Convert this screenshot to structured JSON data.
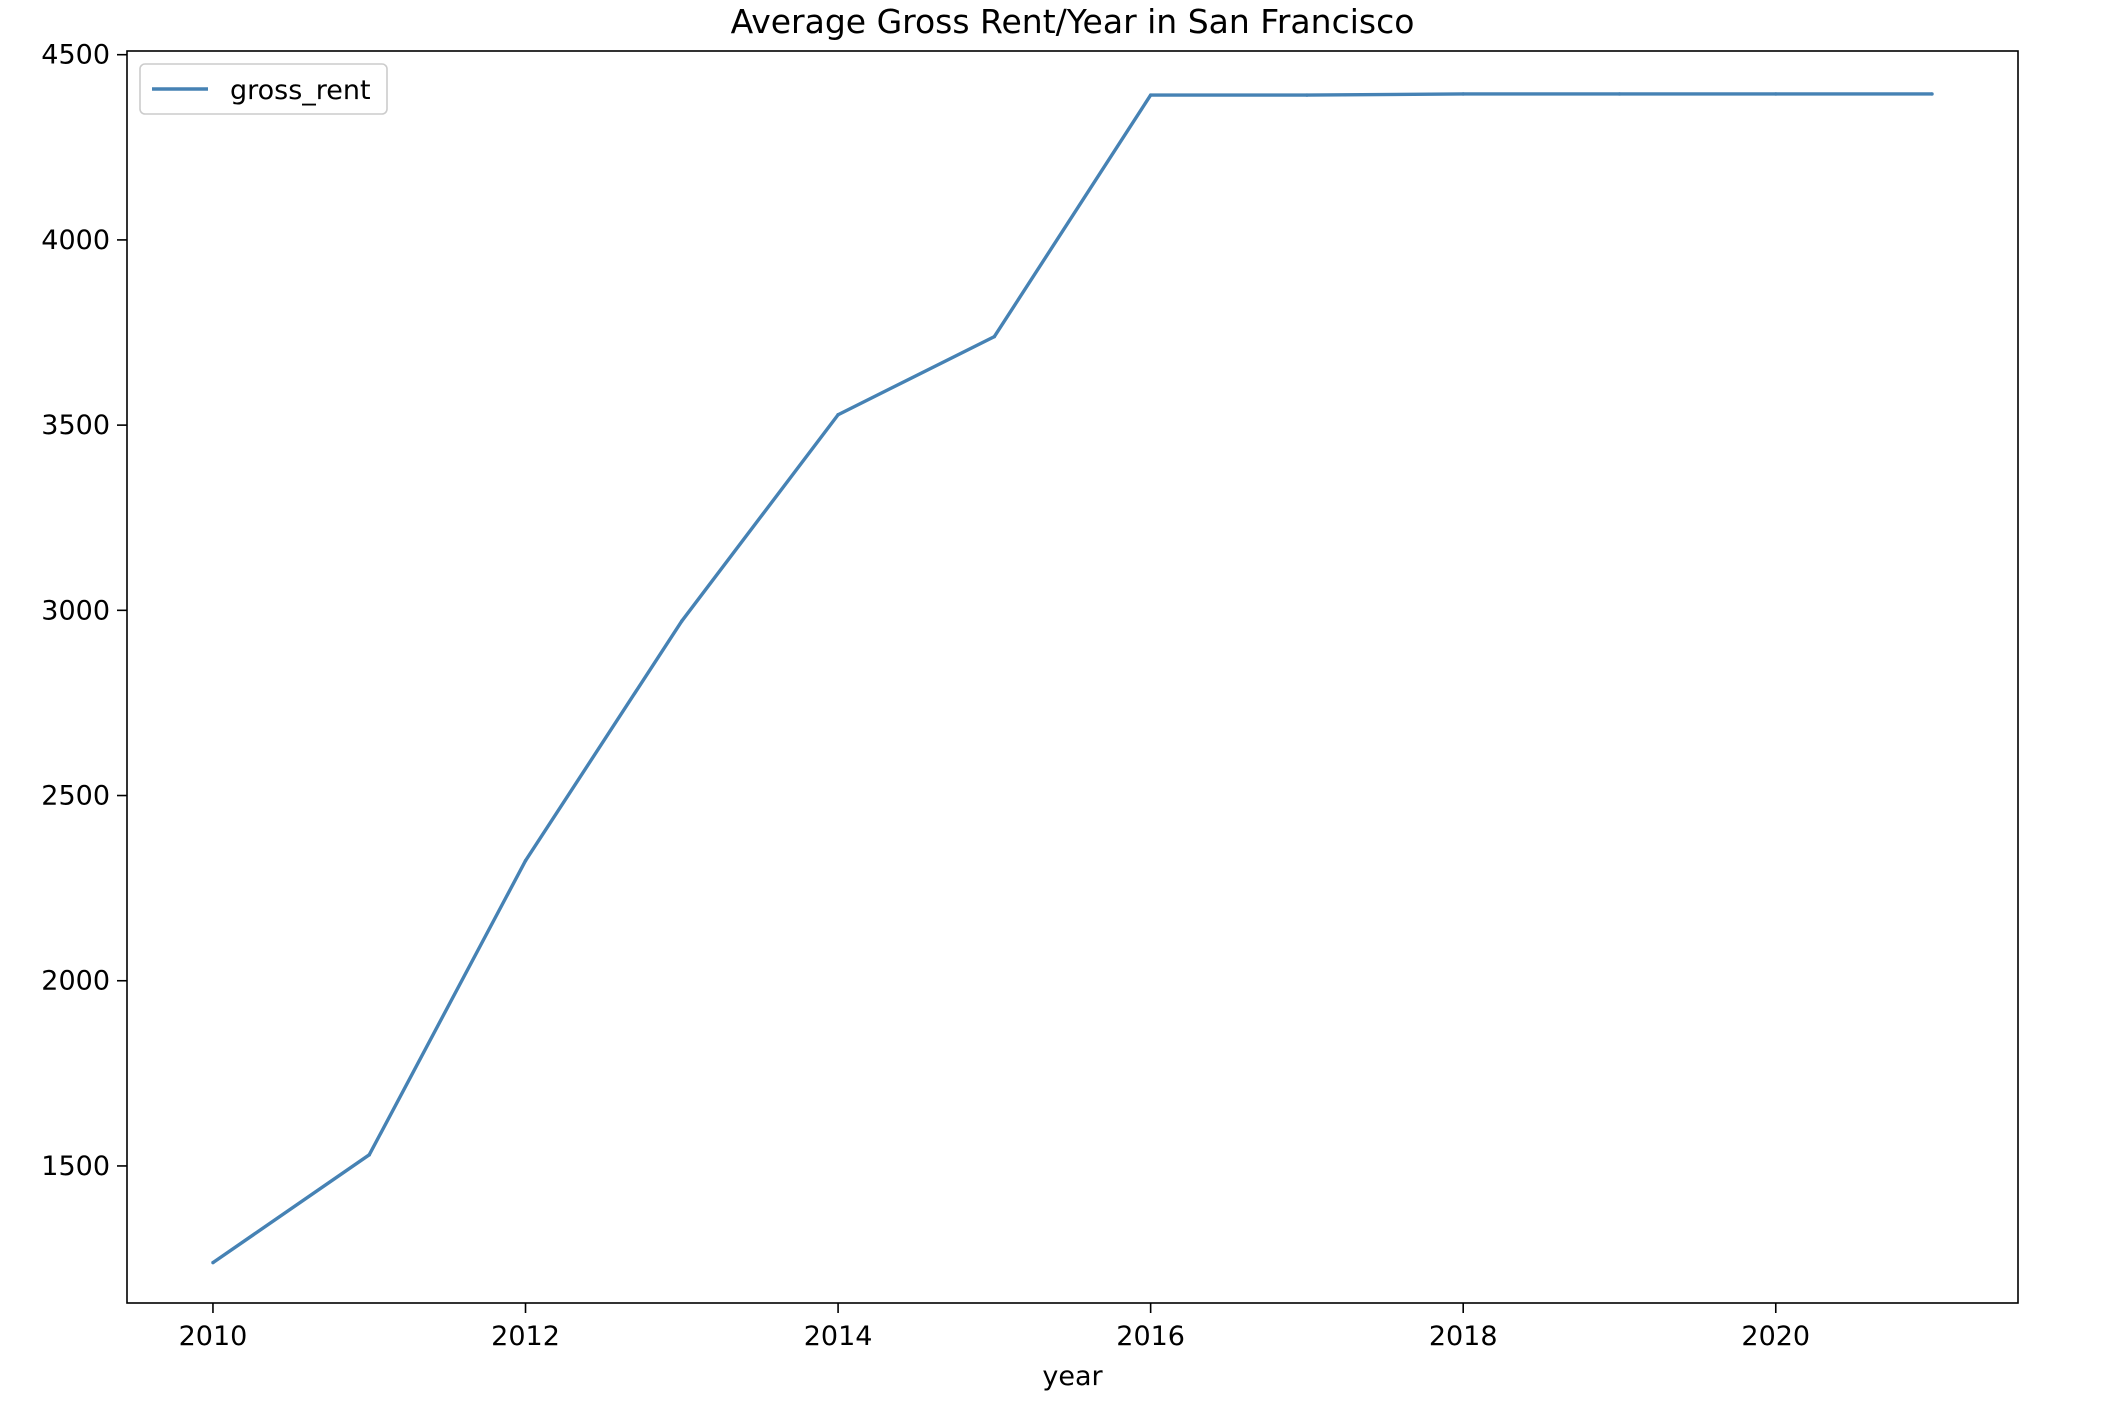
{
  "chart_data": {
    "type": "line",
    "title": "Average Gross Rent/Year in San Francisco",
    "xlabel": "year",
    "ylabel": "",
    "x": [
      2010,
      2011,
      2012,
      2013,
      2014,
      2015,
      2016,
      2017,
      2018,
      2019,
      2020,
      2021
    ],
    "series": [
      {
        "name": "gross_rent",
        "color": "#4682b4",
        "values": [
          1239,
          1530,
          2324,
          2971,
          3528,
          3739,
          4391,
          4391,
          4394,
          4394,
          4394,
          4394
        ]
      }
    ],
    "xlim": [
      2009.45,
      2021.55
    ],
    "ylim": [
      1130,
      4510
    ],
    "xticks": [
      "2010",
      "2012",
      "2014",
      "2016",
      "2018",
      "2020"
    ],
    "yticks": [
      "1500",
      "2000",
      "2500",
      "3000",
      "3500",
      "4000",
      "4500"
    ],
    "grid": false,
    "legend_position": "top-left"
  }
}
